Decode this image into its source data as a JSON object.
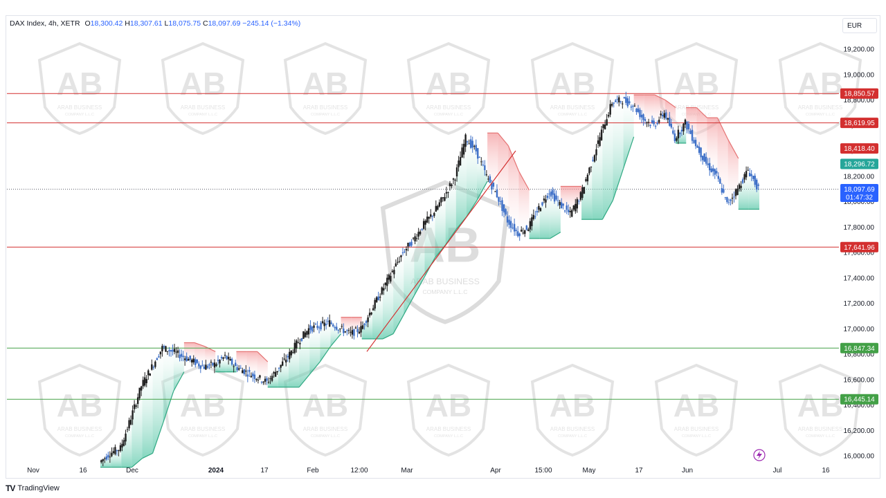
{
  "header": {
    "symbol": "DAX Index, 4h, XETR",
    "open_label": "O",
    "open": "18,300.42",
    "high_label": "H",
    "high": "18,307.61",
    "low_label": "L",
    "low": "18,075.75",
    "close_label": "C",
    "close": "18,097.69",
    "change": "−245.14 (−1.34%)"
  },
  "currency": "EUR",
  "footer": {
    "brand": "TradingView",
    "logo_text": "TV"
  },
  "watermark": {
    "line1": "ARAB BUSINESS",
    "line2": "COMPANY L.L.C",
    "monogram": "AB"
  },
  "colors": {
    "up_candle": "#1e1e1e",
    "down_candle": "#3d6fc7",
    "resistance": "#d32f2f",
    "support": "#43a047",
    "cloud_red": "#f7a8aa",
    "cloud_green": "#7fd3bd",
    "last_price": "#2962ff",
    "teal_label": "#26a69a"
  },
  "chart_data": {
    "type": "line",
    "title": "",
    "xlabel": "",
    "ylabel": "",
    "ylim": [
      15950,
      19300
    ],
    "y_ticks": [
      "19,200.00",
      "19,000.00",
      "18,800.00",
      "18,600.00",
      "18,400.00",
      "18,200.00",
      "18,000.00",
      "17,800.00",
      "17,600.00",
      "17,400.00",
      "17,200.00",
      "17,000.00",
      "16,800.00",
      "16,600.00",
      "16,400.00",
      "16,200.00",
      "16,000.00"
    ],
    "y_tick_values": [
      19200,
      19000,
      18800,
      18600,
      18400,
      18200,
      18000,
      17800,
      17600,
      17400,
      17200,
      17000,
      16800,
      16600,
      16400,
      16200,
      16000
    ],
    "x_ticks": [
      "Nov",
      "16",
      "Dec",
      "2024",
      "17",
      "Feb",
      "12:00",
      "Mar",
      "Apr",
      "15:00",
      "May",
      "17",
      "Jun",
      "Jul",
      "16"
    ],
    "x_tick_bold": [
      false,
      false,
      false,
      true,
      false,
      false,
      false,
      false,
      false,
      false,
      false,
      false,
      false,
      false,
      false
    ],
    "series": [
      {
        "values": [
          15950,
          16020,
          16060,
          16300,
          16550,
          16700,
          16850,
          16820,
          16780,
          16740,
          16700,
          16720,
          16780,
          16700,
          16660,
          16620,
          16580,
          16680,
          16780,
          16900,
          17000,
          17020,
          17050,
          17000,
          16960,
          17000,
          17150,
          17300,
          17450,
          17600,
          17700,
          17820,
          17920,
          18050,
          18200,
          18500,
          18400,
          18200,
          18050,
          17850,
          17750,
          17800,
          17950,
          18080,
          17980,
          17900,
          18050,
          18300,
          18550,
          18780,
          18800,
          18760,
          18650,
          18600,
          18700,
          18500,
          18620,
          18450,
          18300,
          18200,
          17980,
          18100,
          18250,
          18098
        ]
      }
    ],
    "horizontal_levels": [
      {
        "value": 18850.57,
        "label": "18,850.57",
        "kind": "resistance"
      },
      {
        "value": 18619.95,
        "label": "18,619.95",
        "kind": "resistance"
      },
      {
        "value": 17641.96,
        "label": "17,641.96",
        "kind": "resistance"
      },
      {
        "value": 16847.34,
        "label": "16,847.34",
        "kind": "support"
      },
      {
        "value": 16445.14,
        "label": "16,445.14",
        "kind": "support"
      }
    ],
    "price_tags": [
      {
        "value": 18418.4,
        "label": "18,418.40",
        "kind": "red"
      },
      {
        "value": 18296.72,
        "label": "18,296.72",
        "kind": "teal"
      },
      {
        "value": 18097.69,
        "label": "18,097.69",
        "timer": "01:47:32",
        "kind": "last"
      }
    ],
    "last_price": 18097.69
  }
}
